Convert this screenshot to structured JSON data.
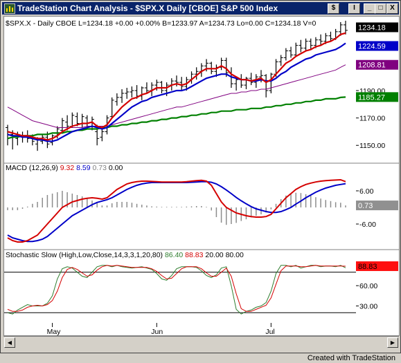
{
  "window": {
    "title": "TradeStation Chart Analysis - $SPX.X  Daily  [CBOE] S&P 500 Index",
    "buttons": {
      "symbol": "$",
      "indicator": "I",
      "minimize": "_",
      "maximize": "□",
      "close": "X"
    }
  },
  "footer": "Created with TradeStation",
  "colors": {
    "price": "#000000",
    "ma_fast": "#d40000",
    "ma_mid": "#0000c8",
    "ma_slow": "#800080",
    "ma_long": "#008000",
    "stoch_k": "#2e7d2e",
    "stoch_d": "#d40000"
  },
  "chart_data": [
    {
      "type": "bar",
      "header": "$SPX.X - Daily   CBOE  L=1234.18  +0.00  +0.00%  B=1233.97  A=1234.73  Lo=0.00  C=1234.18  V=0",
      "y_ticks": [
        "1210.00",
        "1190.00",
        "1170.00",
        "1150.00"
      ],
      "y_tick_values": [
        1210,
        1190,
        1170,
        1150
      ],
      "ylim": [
        1138,
        1242
      ],
      "x_labels": [
        "May",
        "Jun",
        "Jul"
      ],
      "x_label_index": [
        9,
        30,
        53
      ],
      "last_labels": [
        {
          "text": "1234.18",
          "value": 1234.18,
          "bg": "#000000",
          "fg": "#ffffff"
        },
        {
          "text": "1224.59",
          "value": 1224.59,
          "bg": "#0000c8",
          "fg": "#ffffff"
        },
        {
          "text": "1208.81",
          "value": 1208.81,
          "bg": "#800080",
          "fg": "#ffffff"
        },
        {
          "text": "1185.27",
          "value": 1185.27,
          "bg": "#008000",
          "fg": "#ffffff"
        }
      ],
      "ohlc": [
        [
          1163,
          1165,
          1150,
          1160
        ],
        [
          1158,
          1161,
          1147,
          1156
        ],
        [
          1155,
          1160,
          1150,
          1158
        ],
        [
          1157,
          1160,
          1152,
          1156
        ],
        [
          1157,
          1161,
          1152,
          1155
        ],
        [
          1155,
          1158,
          1150,
          1153
        ],
        [
          1151,
          1156,
          1146,
          1154
        ],
        [
          1153,
          1158,
          1151,
          1156
        ],
        [
          1156,
          1160,
          1148,
          1151
        ],
        [
          1152,
          1158,
          1150,
          1157
        ],
        [
          1157,
          1164,
          1155,
          1162
        ],
        [
          1161,
          1170,
          1160,
          1168
        ],
        [
          1167,
          1172,
          1161,
          1164
        ],
        [
          1164,
          1174,
          1163,
          1172
        ],
        [
          1171,
          1174,
          1164,
          1166
        ],
        [
          1166,
          1173,
          1163,
          1171
        ],
        [
          1170,
          1172,
          1162,
          1164
        ],
        [
          1164,
          1171,
          1161,
          1169
        ],
        [
          1160,
          1165,
          1150,
          1155
        ],
        [
          1156,
          1162,
          1153,
          1160
        ],
        [
          1160,
          1172,
          1158,
          1170
        ],
        [
          1171,
          1185,
          1170,
          1183
        ],
        [
          1182,
          1188,
          1179,
          1185
        ],
        [
          1185,
          1191,
          1181,
          1188
        ],
        [
          1188,
          1192,
          1184,
          1189
        ],
        [
          1189,
          1193,
          1185,
          1190
        ],
        [
          1190,
          1194,
          1184,
          1186
        ],
        [
          1186,
          1193,
          1183,
          1192
        ],
        [
          1192,
          1196,
          1188,
          1190
        ],
        [
          1190,
          1196,
          1186,
          1194
        ],
        [
          1194,
          1198,
          1190,
          1196
        ],
        [
          1196,
          1197,
          1188,
          1190
        ],
        [
          1190,
          1196,
          1186,
          1194
        ],
        [
          1194,
          1199,
          1190,
          1197
        ],
        [
          1197,
          1201,
          1193,
          1196
        ],
        [
          1196,
          1200,
          1190,
          1193
        ],
        [
          1193,
          1200,
          1190,
          1198
        ],
        [
          1198,
          1204,
          1195,
          1202
        ],
        [
          1202,
          1207,
          1198,
          1204
        ],
        [
          1204,
          1210,
          1200,
          1208
        ],
        [
          1208,
          1213,
          1204,
          1210
        ],
        [
          1210,
          1211,
          1202,
          1204
        ],
        [
          1204,
          1209,
          1200,
          1207
        ],
        [
          1207,
          1214,
          1205,
          1212
        ],
        [
          1212,
          1214,
          1200,
          1203
        ],
        [
          1203,
          1207,
          1192,
          1195
        ],
        [
          1195,
          1200,
          1190,
          1198
        ],
        [
          1198,
          1202,
          1192,
          1194
        ],
        [
          1194,
          1200,
          1191,
          1199
        ],
        [
          1199,
          1203,
          1194,
          1196
        ],
        [
          1196,
          1202,
          1192,
          1200
        ],
        [
          1200,
          1205,
          1196,
          1201
        ],
        [
          1201,
          1202,
          1185,
          1190
        ],
        [
          1190,
          1203,
          1188,
          1202
        ],
        [
          1202,
          1213,
          1200,
          1211
        ],
        [
          1211,
          1216,
          1208,
          1214
        ],
        [
          1214,
          1221,
          1212,
          1219
        ],
        [
          1219,
          1222,
          1214,
          1216
        ],
        [
          1216,
          1225,
          1215,
          1223
        ],
        [
          1223,
          1227,
          1218,
          1221
        ],
        [
          1221,
          1228,
          1219,
          1226
        ],
        [
          1226,
          1228,
          1220,
          1223
        ],
        [
          1223,
          1229,
          1221,
          1227
        ],
        [
          1227,
          1231,
          1223,
          1226
        ],
        [
          1226,
          1232,
          1224,
          1230
        ],
        [
          1230,
          1233,
          1226,
          1228
        ],
        [
          1228,
          1235,
          1227,
          1233
        ],
        [
          1233,
          1240,
          1230,
          1238
        ],
        [
          1238,
          1241,
          1231,
          1234
        ]
      ],
      "ma_fast": [
        1160,
        1159,
        1158,
        1157,
        1157,
        1156,
        1155,
        1155,
        1154,
        1155,
        1157,
        1160,
        1162,
        1164,
        1165,
        1166,
        1166,
        1167,
        1164,
        1163,
        1165,
        1170,
        1174,
        1178,
        1181,
        1184,
        1185,
        1187,
        1188,
        1190,
        1192,
        1192,
        1192,
        1194,
        1195,
        1194,
        1195,
        1198,
        1201,
        1204,
        1206,
        1206,
        1206,
        1208,
        1206,
        1202,
        1200,
        1198,
        1198,
        1197,
        1198,
        1199,
        1196,
        1198,
        1202,
        1206,
        1210,
        1212,
        1215,
        1217,
        1219,
        1220,
        1222,
        1223,
        1225,
        1226,
        1228,
        1231,
        1232
      ],
      "ma_mid": [
        1158,
        1157,
        1157,
        1156,
        1156,
        1155,
        1154,
        1154,
        1153,
        1153,
        1154,
        1156,
        1158,
        1160,
        1161,
        1162,
        1163,
        1164,
        1163,
        1162,
        1163,
        1166,
        1169,
        1172,
        1175,
        1178,
        1180,
        1182,
        1183,
        1185,
        1186,
        1187,
        1188,
        1189,
        1190,
        1190,
        1191,
        1193,
        1195,
        1197,
        1199,
        1200,
        1201,
        1202,
        1202,
        1200,
        1199,
        1198,
        1198,
        1197,
        1197,
        1198,
        1197,
        1197,
        1199,
        1202,
        1204,
        1207,
        1209,
        1211,
        1213,
        1214,
        1216,
        1217,
        1218,
        1219,
        1220,
        1222,
        1224.59
      ],
      "ma_slow": [
        1178,
        1176,
        1174,
        1172,
        1170,
        1168,
        1167,
        1166,
        1165,
        1164,
        1163,
        1163,
        1163,
        1163,
        1163,
        1163,
        1164,
        1164,
        1164,
        1164,
        1164,
        1165,
        1166,
        1167,
        1168,
        1169,
        1170,
        1171,
        1172,
        1173,
        1174,
        1175,
        1176,
        1177,
        1178,
        1178,
        1179,
        1180,
        1181,
        1182,
        1183,
        1184,
        1185,
        1186,
        1187,
        1188,
        1188,
        1189,
        1189,
        1190,
        1190,
        1191,
        1191,
        1192,
        1193,
        1194,
        1195,
        1196,
        1197,
        1198,
        1199,
        1200,
        1201,
        1202,
        1203,
        1204,
        1205,
        1207,
        1208.81
      ],
      "ma_long": [
        1155,
        1156,
        1156,
        1157,
        1157,
        1157,
        1158,
        1158,
        1158,
        1159,
        1159,
        1159,
        1160,
        1160,
        1161,
        1161,
        1162,
        1162,
        1162,
        1163,
        1163,
        1164,
        1164,
        1165,
        1165,
        1166,
        1166,
        1167,
        1167,
        1168,
        1168,
        1169,
        1169,
        1170,
        1170,
        1171,
        1171,
        1172,
        1172,
        1173,
        1173,
        1174,
        1174,
        1175,
        1175,
        1175,
        1176,
        1176,
        1176,
        1177,
        1177,
        1177,
        1178,
        1178,
        1179,
        1179,
        1180,
        1180,
        1181,
        1181,
        1182,
        1182,
        1183,
        1183,
        1184,
        1184,
        1184,
        1185,
        1185.27
      ]
    },
    {
      "type": "line",
      "header": {
        "name": "MACD",
        "params": "(12,26,9)",
        "v1": "9.32",
        "v2": "8.59",
        "v3": "0.73",
        "v4": "0.00"
      },
      "y_ticks": [
        "6.00",
        "-6.00"
      ],
      "y_tick_values": [
        6,
        -6
      ],
      "ylim": [
        -15,
        12
      ],
      "last_label": {
        "text": "0.73",
        "value": 0.73
      },
      "macd": [
        -11,
        -12,
        -12.5,
        -12.5,
        -12,
        -11,
        -10,
        -8,
        -6,
        -4,
        -2,
        0,
        1,
        2,
        2.5,
        3,
        3.3,
        3.5,
        3.3,
        3,
        3.5,
        5,
        6.5,
        7.5,
        8.5,
        9,
        9.3,
        9.5,
        9.5,
        9.4,
        9.3,
        9.2,
        9.2,
        9.2,
        9.2,
        9.2,
        9.3,
        9.5,
        9.7,
        9.8,
        9.5,
        8,
        5,
        2,
        0,
        -1,
        -2,
        -2.5,
        -3,
        -3.3,
        -3.5,
        -3.5,
        -3.3,
        -2.5,
        -0.5,
        1.5,
        3.5,
        5,
        6.5,
        7.5,
        8.3,
        8.8,
        9.2,
        9.5,
        9.7,
        9.8,
        9.9,
        10,
        9.32
      ],
      "signal": [
        -10,
        -11,
        -11.5,
        -12,
        -12.3,
        -12.3,
        -12,
        -11.5,
        -10.5,
        -9,
        -7.5,
        -6,
        -4.5,
        -3,
        -2,
        -1,
        0,
        1,
        1.8,
        2.3,
        2.8,
        3.5,
        4.5,
        5.5,
        6.5,
        7.3,
        8,
        8.5,
        8.8,
        9,
        9,
        9,
        9,
        9,
        9,
        9,
        9,
        9.1,
        9.2,
        9.3,
        9.3,
        9.1,
        8.5,
        7.5,
        6.3,
        5,
        3.6,
        2.4,
        1.3,
        0.3,
        -0.5,
        -1,
        -1.5,
        -1.8,
        -1.8,
        -1.5,
        -0.8,
        0,
        1.2,
        2.3,
        3.5,
        4.5,
        5.5,
        6.3,
        7,
        7.5,
        8,
        8.3,
        8.59
      ]
    },
    {
      "type": "line",
      "header": {
        "name": "Stochastic Slow",
        "params": "(High,Low,Close,14,3,3,1,20,80)",
        "k": "86.40",
        "d": "88.83",
        "os": "20.00",
        "ob": "80.00"
      },
      "y_ticks": [
        "60.00",
        "30.00"
      ],
      "y_tick_values": [
        60,
        30
      ],
      "ylim": [
        8,
        98
      ],
      "levels": [
        80,
        20
      ],
      "last_label": {
        "text": "88.83",
        "value": 88.83
      },
      "k": [
        20,
        18,
        24,
        28,
        32,
        30,
        30,
        30,
        34,
        45,
        70,
        85,
        88,
        86,
        80,
        74,
        72,
        80,
        88,
        90,
        90,
        88,
        90,
        88,
        87,
        86,
        87,
        88,
        86,
        84,
        78,
        70,
        68,
        75,
        85,
        88,
        88,
        88,
        87,
        82,
        75,
        72,
        76,
        86,
        88,
        60,
        25,
        18,
        22,
        24,
        28,
        30,
        35,
        52,
        78,
        90,
        90,
        88,
        90,
        86,
        88,
        90,
        90,
        88,
        89,
        89,
        88,
        90,
        86.4
      ],
      "d": [
        25,
        22,
        22,
        24,
        28,
        30,
        31,
        30,
        32,
        38,
        52,
        72,
        84,
        87,
        84,
        79,
        74,
        76,
        83,
        88,
        90,
        89,
        90,
        89,
        88,
        87,
        87,
        87,
        87,
        85,
        81,
        75,
        70,
        71,
        78,
        85,
        88,
        88,
        88,
        85,
        79,
        74,
        74,
        80,
        86,
        74,
        48,
        26,
        22,
        22,
        25,
        28,
        31,
        42,
        62,
        82,
        89,
        89,
        89,
        88,
        88,
        89,
        90,
        89,
        89,
        89,
        89,
        89,
        88.83
      ]
    }
  ]
}
